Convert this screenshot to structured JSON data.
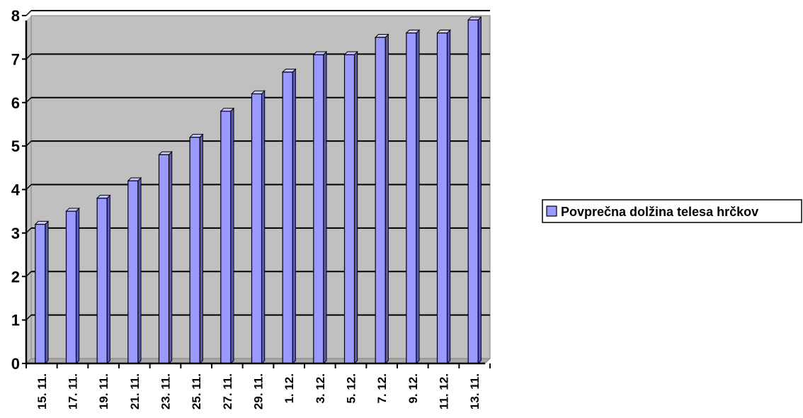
{
  "chart_data": {
    "type": "bar",
    "categories": [
      "15. 11.",
      "17. 11.",
      "19. 11.",
      "21. 11.",
      "23. 11.",
      "25. 11.",
      "27. 11.",
      "29. 11.",
      "1. 12.",
      "3. 12.",
      "5. 12.",
      "7. 12.",
      "9. 12.",
      "11. 12.",
      "13. 11."
    ],
    "series": [
      {
        "name": "Povprečna dolžina telesa hrčkov",
        "values": [
          3.2,
          3.5,
          3.8,
          4.2,
          4.8,
          5.2,
          5.8,
          6.2,
          6.7,
          7.1,
          7.1,
          7.5,
          7.6,
          7.6,
          7.9
        ]
      }
    ],
    "title": "",
    "xlabel": "",
    "ylabel": "",
    "ylim": [
      0,
      8
    ],
    "yticks": [
      0,
      1,
      2,
      3,
      4,
      5,
      6,
      7,
      8
    ],
    "grid": true,
    "legend_position": "right",
    "colors": {
      "plot_background": "#c0c0c0",
      "bar_front": "#9999ff",
      "bar_side": "#5c5cb8",
      "bar_top": "#c8c8ff",
      "gridline": "#000000"
    }
  }
}
